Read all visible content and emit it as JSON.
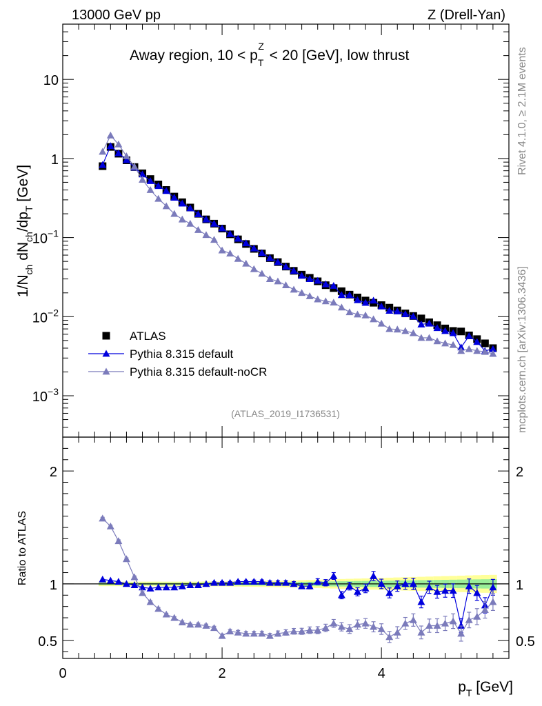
{
  "header": {
    "left": "13000 GeV pp",
    "right": "Z (Drell-Yan)"
  },
  "side_labels": {
    "rivet": "Rivet 4.1.0, ≥ 2.1M events",
    "mcplots": "mcplots.cern.ch [arXiv:1306.3436]"
  },
  "chart_data": [
    {
      "type": "scatter",
      "panel": "main",
      "title": "Away region, 10 < p_T^Z < 20 [GeV], low thrust",
      "ylabel": "1/N_ch dN_ch/dp_T [GeV]",
      "yscale": "log",
      "xlim": [
        0,
        5.6
      ],
      "ylim": [
        0.0003,
        50
      ],
      "yticks": [
        {
          "value": 0.001,
          "base": "10",
          "exp": "−3"
        },
        {
          "value": 0.01,
          "base": "10",
          "exp": "−2"
        },
        {
          "value": 0.1,
          "base": "10",
          "exp": "−1"
        },
        {
          "value": 1,
          "base": "1",
          "exp": ""
        },
        {
          "value": 10,
          "base": "10",
          "exp": ""
        }
      ],
      "analysis_tag": "(ATLAS_2019_I1736531)",
      "x": [
        0.5,
        0.6,
        0.7,
        0.8,
        0.9,
        1.0,
        1.1,
        1.2,
        1.3,
        1.4,
        1.5,
        1.6,
        1.7,
        1.8,
        1.9,
        2.0,
        2.1,
        2.2,
        2.3,
        2.4,
        2.5,
        2.6,
        2.7,
        2.8,
        2.9,
        3.0,
        3.1,
        3.2,
        3.3,
        3.4,
        3.5,
        3.6,
        3.7,
        3.8,
        3.9,
        4.0,
        4.1,
        4.2,
        4.3,
        4.4,
        4.5,
        4.6,
        4.7,
        4.8,
        4.9,
        5.0,
        5.1,
        5.2,
        5.3,
        5.4
      ],
      "series": [
        {
          "name": "ATLAS",
          "color": "#000000",
          "marker": "square",
          "values": [
            0.8,
            1.4,
            1.15,
            0.95,
            0.78,
            0.65,
            0.55,
            0.47,
            0.4,
            0.33,
            0.28,
            0.24,
            0.2,
            0.17,
            0.15,
            0.13,
            0.11,
            0.095,
            0.083,
            0.072,
            0.063,
            0.055,
            0.049,
            0.043,
            0.038,
            0.034,
            0.031,
            0.028,
            0.025,
            0.023,
            0.021,
            0.019,
            0.0175,
            0.016,
            0.015,
            0.014,
            0.013,
            0.012,
            0.011,
            0.0102,
            0.0095,
            0.0085,
            0.0078,
            0.0071,
            0.0066,
            0.0065,
            0.0058,
            0.0052,
            0.0046,
            0.004
          ]
        },
        {
          "name": "Pythia 8.315 default",
          "color": "#0000dd",
          "marker": "triangle",
          "values": [
            0.83,
            1.44,
            1.17,
            0.96,
            0.77,
            0.63,
            0.52,
            0.45,
            0.39,
            0.32,
            0.27,
            0.235,
            0.198,
            0.17,
            0.15,
            0.131,
            0.111,
            0.097,
            0.085,
            0.073,
            0.064,
            0.055,
            0.049,
            0.043,
            0.038,
            0.033,
            0.03,
            0.0285,
            0.0257,
            0.0246,
            0.0188,
            0.0188,
            0.0162,
            0.015,
            0.016,
            0.0135,
            0.0119,
            0.0117,
            0.0108,
            0.0101,
            0.008,
            0.0082,
            0.0072,
            0.0066,
            0.0062,
            0.0041,
            0.0057,
            0.0048,
            0.0037,
            0.0039
          ]
        },
        {
          "name": "Pythia 8.315 default-noCR",
          "color": "#7b7bbb",
          "marker": "triangle",
          "values": [
            1.22,
            1.96,
            1.51,
            1.07,
            0.79,
            0.54,
            0.4,
            0.31,
            0.25,
            0.2,
            0.17,
            0.15,
            0.125,
            0.108,
            0.094,
            0.069,
            0.063,
            0.054,
            0.047,
            0.04,
            0.035,
            0.03,
            0.028,
            0.025,
            0.022,
            0.02,
            0.0182,
            0.0166,
            0.0157,
            0.0151,
            0.0131,
            0.0114,
            0.0107,
            0.0104,
            0.0093,
            0.0082,
            0.007,
            0.0069,
            0.0066,
            0.0062,
            0.0054,
            0.0054,
            0.0049,
            0.0046,
            0.0044,
            0.0037,
            0.0039,
            0.0037,
            0.0036,
            0.0034
          ]
        }
      ]
    },
    {
      "type": "scatter",
      "panel": "ratio",
      "ylabel": "Ratio to ATLAS",
      "xlabel": "p_T [GeV]",
      "xlim": [
        0,
        5.6
      ],
      "ylim": [
        0.34,
        2.3
      ],
      "xticks": [
        0,
        2,
        4
      ],
      "yticks": [
        0.5,
        1,
        2
      ],
      "x": [
        0.5,
        0.6,
        0.7,
        0.8,
        0.9,
        1.0,
        1.1,
        1.2,
        1.3,
        1.4,
        1.5,
        1.6,
        1.7,
        1.8,
        1.9,
        2.0,
        2.1,
        2.2,
        2.3,
        2.4,
        2.5,
        2.6,
        2.7,
        2.8,
        2.9,
        3.0,
        3.1,
        3.2,
        3.3,
        3.4,
        3.5,
        3.6,
        3.7,
        3.8,
        3.9,
        4.0,
        4.1,
        4.2,
        4.3,
        4.4,
        4.5,
        4.6,
        4.7,
        4.8,
        4.9,
        5.0,
        5.1,
        5.2,
        5.3,
        5.4
      ],
      "band_inner": [
        0.01,
        0.01,
        0.01,
        0.01,
        0.01,
        0.01,
        0.01,
        0.01,
        0.01,
        0.01,
        0.01,
        0.01,
        0.01,
        0.012,
        0.012,
        0.012,
        0.013,
        0.013,
        0.014,
        0.014,
        0.015,
        0.015,
        0.016,
        0.016,
        0.017,
        0.018,
        0.019,
        0.02,
        0.021,
        0.022,
        0.023,
        0.024,
        0.025,
        0.026,
        0.027,
        0.028,
        0.029,
        0.03,
        0.031,
        0.032,
        0.033,
        0.034,
        0.035,
        0.036,
        0.037,
        0.038,
        0.039,
        0.04,
        0.041,
        0.042
      ],
      "band_outer": [
        0.02,
        0.02,
        0.02,
        0.02,
        0.02,
        0.02,
        0.02,
        0.02,
        0.02,
        0.02,
        0.02,
        0.02,
        0.02,
        0.022,
        0.022,
        0.022,
        0.023,
        0.024,
        0.025,
        0.026,
        0.027,
        0.028,
        0.029,
        0.03,
        0.031,
        0.033,
        0.035,
        0.037,
        0.039,
        0.041,
        0.043,
        0.045,
        0.047,
        0.049,
        0.051,
        0.053,
        0.055,
        0.057,
        0.059,
        0.061,
        0.063,
        0.065,
        0.067,
        0.069,
        0.071,
        0.073,
        0.075,
        0.077,
        0.079,
        0.08
      ],
      "series": [
        {
          "name": "Pythia 8.315 default",
          "color": "#0000dd",
          "values": [
            1.04,
            1.03,
            1.02,
            1.0,
            0.99,
            0.97,
            0.96,
            0.97,
            0.97,
            0.97,
            0.98,
            0.99,
            0.99,
            1.0,
            1.01,
            1.01,
            1.01,
            1.02,
            1.02,
            1.02,
            1.02,
            1.01,
            1.01,
            1.01,
            1.0,
            0.98,
            0.98,
            1.02,
            1.01,
            1.07,
            0.9,
            0.98,
            0.93,
            0.96,
            1.07,
            1.0,
            0.92,
            0.98,
            1.0,
            1.0,
            0.84,
            0.97,
            0.93,
            0.94,
            0.94,
            0.63,
            0.98,
            0.92,
            0.81,
            0.97
          ],
          "errors": [
            0.005,
            0.005,
            0.005,
            0.005,
            0.005,
            0.005,
            0.006,
            0.006,
            0.006,
            0.006,
            0.007,
            0.007,
            0.008,
            0.008,
            0.009,
            0.01,
            0.011,
            0.012,
            0.013,
            0.014,
            0.015,
            0.016,
            0.017,
            0.018,
            0.02,
            0.022,
            0.024,
            0.026,
            0.028,
            0.03,
            0.032,
            0.034,
            0.036,
            0.038,
            0.04,
            0.042,
            0.044,
            0.046,
            0.048,
            0.05,
            0.052,
            0.054,
            0.056,
            0.058,
            0.06,
            0.062,
            0.064,
            0.066,
            0.068,
            0.07
          ]
        },
        {
          "name": "Pythia 8.315 default-noCR",
          "color": "#7b7bbb",
          "values": [
            1.58,
            1.51,
            1.38,
            1.22,
            1.06,
            0.92,
            0.84,
            0.78,
            0.73,
            0.7,
            0.66,
            0.64,
            0.64,
            0.63,
            0.61,
            0.54,
            0.58,
            0.57,
            0.56,
            0.56,
            0.56,
            0.54,
            0.56,
            0.57,
            0.58,
            0.58,
            0.59,
            0.59,
            0.61,
            0.65,
            0.62,
            0.6,
            0.64,
            0.65,
            0.62,
            0.6,
            0.53,
            0.57,
            0.65,
            0.68,
            0.57,
            0.63,
            0.63,
            0.65,
            0.67,
            0.56,
            0.68,
            0.71,
            0.77,
            0.84
          ],
          "errors": [
            0.01,
            0.01,
            0.01,
            0.01,
            0.01,
            0.01,
            0.01,
            0.01,
            0.01,
            0.01,
            0.012,
            0.012,
            0.013,
            0.014,
            0.015,
            0.016,
            0.017,
            0.018,
            0.019,
            0.02,
            0.021,
            0.022,
            0.023,
            0.024,
            0.025,
            0.027,
            0.029,
            0.031,
            0.033,
            0.035,
            0.037,
            0.039,
            0.041,
            0.043,
            0.045,
            0.047,
            0.049,
            0.051,
            0.053,
            0.055,
            0.057,
            0.059,
            0.061,
            0.063,
            0.065,
            0.067,
            0.069,
            0.071,
            0.073,
            0.075
          ]
        }
      ]
    }
  ]
}
